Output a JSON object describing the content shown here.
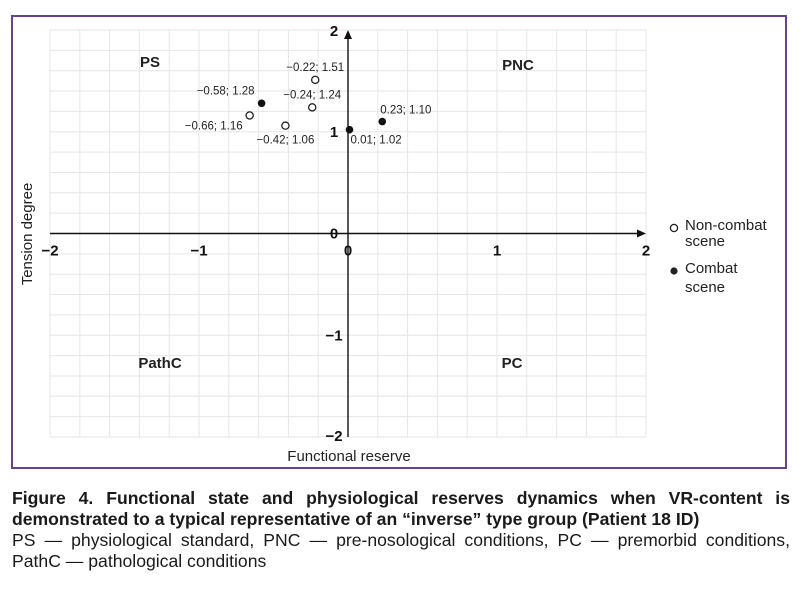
{
  "chart_data": {
    "type": "scatter",
    "xlabel": "Functional reserve",
    "ylabel": "Tension degree",
    "xlim": [
      -2,
      2
    ],
    "ylim": [
      -2,
      2
    ],
    "grid": true,
    "x_ticks": [
      "−2",
      "−1",
      "0",
      "1",
      "2"
    ],
    "y_ticks": [
      "2",
      "1",
      "0",
      "−1",
      "−2"
    ],
    "quadrants": [
      "PS",
      "PNC",
      "PathC",
      "PC"
    ],
    "legend_position": "right",
    "series": [
      {
        "name": "Non-combat scene",
        "marker": "open-circle",
        "points": [
          {
            "x": -0.22,
            "y": 1.51,
            "label": "−0.22; 1.51"
          },
          {
            "x": -0.24,
            "y": 1.24,
            "label": "−0.24; 1.24"
          },
          {
            "x": -0.66,
            "y": 1.16,
            "label": "−0.66; 1.16"
          },
          {
            "x": -0.42,
            "y": 1.06,
            "label": "−0.42; 1.06"
          }
        ]
      },
      {
        "name": "Combat scene",
        "marker": "filled-circle",
        "points": [
          {
            "x": -0.58,
            "y": 1.28,
            "label": "−0.58; 1.28"
          },
          {
            "x": 0.23,
            "y": 1.1,
            "label": "0.23; 1.10"
          },
          {
            "x": 0.01,
            "y": 1.02,
            "label": "0.01; 1.02"
          }
        ]
      }
    ]
  },
  "legend": {
    "noncombat_line1": "Non-combat",
    "noncombat_line2": "scene",
    "combat_line1": "Combat",
    "combat_line2": "scene"
  },
  "caption": {
    "title": "Figure 4. Functional state and physiological reserves dynamics when VR-content is demonstrated to a typical representative of an “inverse” type group (Patient 18 ID)",
    "body": "PS — physiological standard, PNC — pre-nosological conditions, PC — premorbid conditions, PathC — pathological conditions"
  }
}
